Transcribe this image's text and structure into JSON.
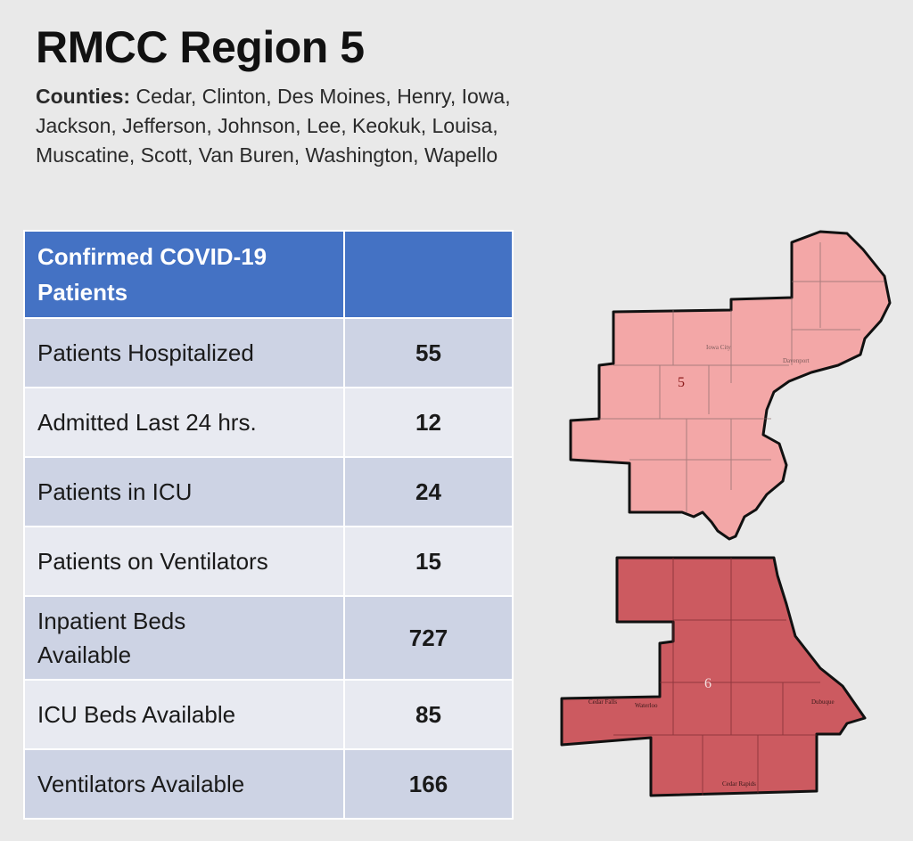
{
  "title": "RMCC Region 5",
  "counties": {
    "label": "Counties:",
    "list": "Cedar, Clinton, Des Moines, Henry, Iowa, Jackson, Jefferson, Johnson, Lee, Keokuk, Louisa, Muscatine, Scott, Van Buren, Washington, Wapello"
  },
  "table": {
    "header": "Confirmed COVID-19 Patients",
    "rows": [
      {
        "label": "Patients Hospitalized",
        "value": "55"
      },
      {
        "label": "Admitted Last 24 hrs.",
        "value": "12"
      },
      {
        "label": "Patients in ICU",
        "value": "24"
      },
      {
        "label": "Patients on Ventilators",
        "value": "15"
      },
      {
        "label": "Inpatient Beds Available",
        "value": "727"
      },
      {
        "label": "ICU Beds Available",
        "value": "85"
      },
      {
        "label": "Ventilators Available",
        "value": "166"
      }
    ]
  },
  "maps": {
    "region5": {
      "label": "5",
      "color": "#f3a7a7"
    },
    "region6": {
      "label": "6",
      "color": "#cc5a60"
    },
    "place_labels": [
      "Iowa City",
      "Davenport",
      "Cedar Falls",
      "Waterloo",
      "Dubuque",
      "Cedar Rapids"
    ]
  }
}
